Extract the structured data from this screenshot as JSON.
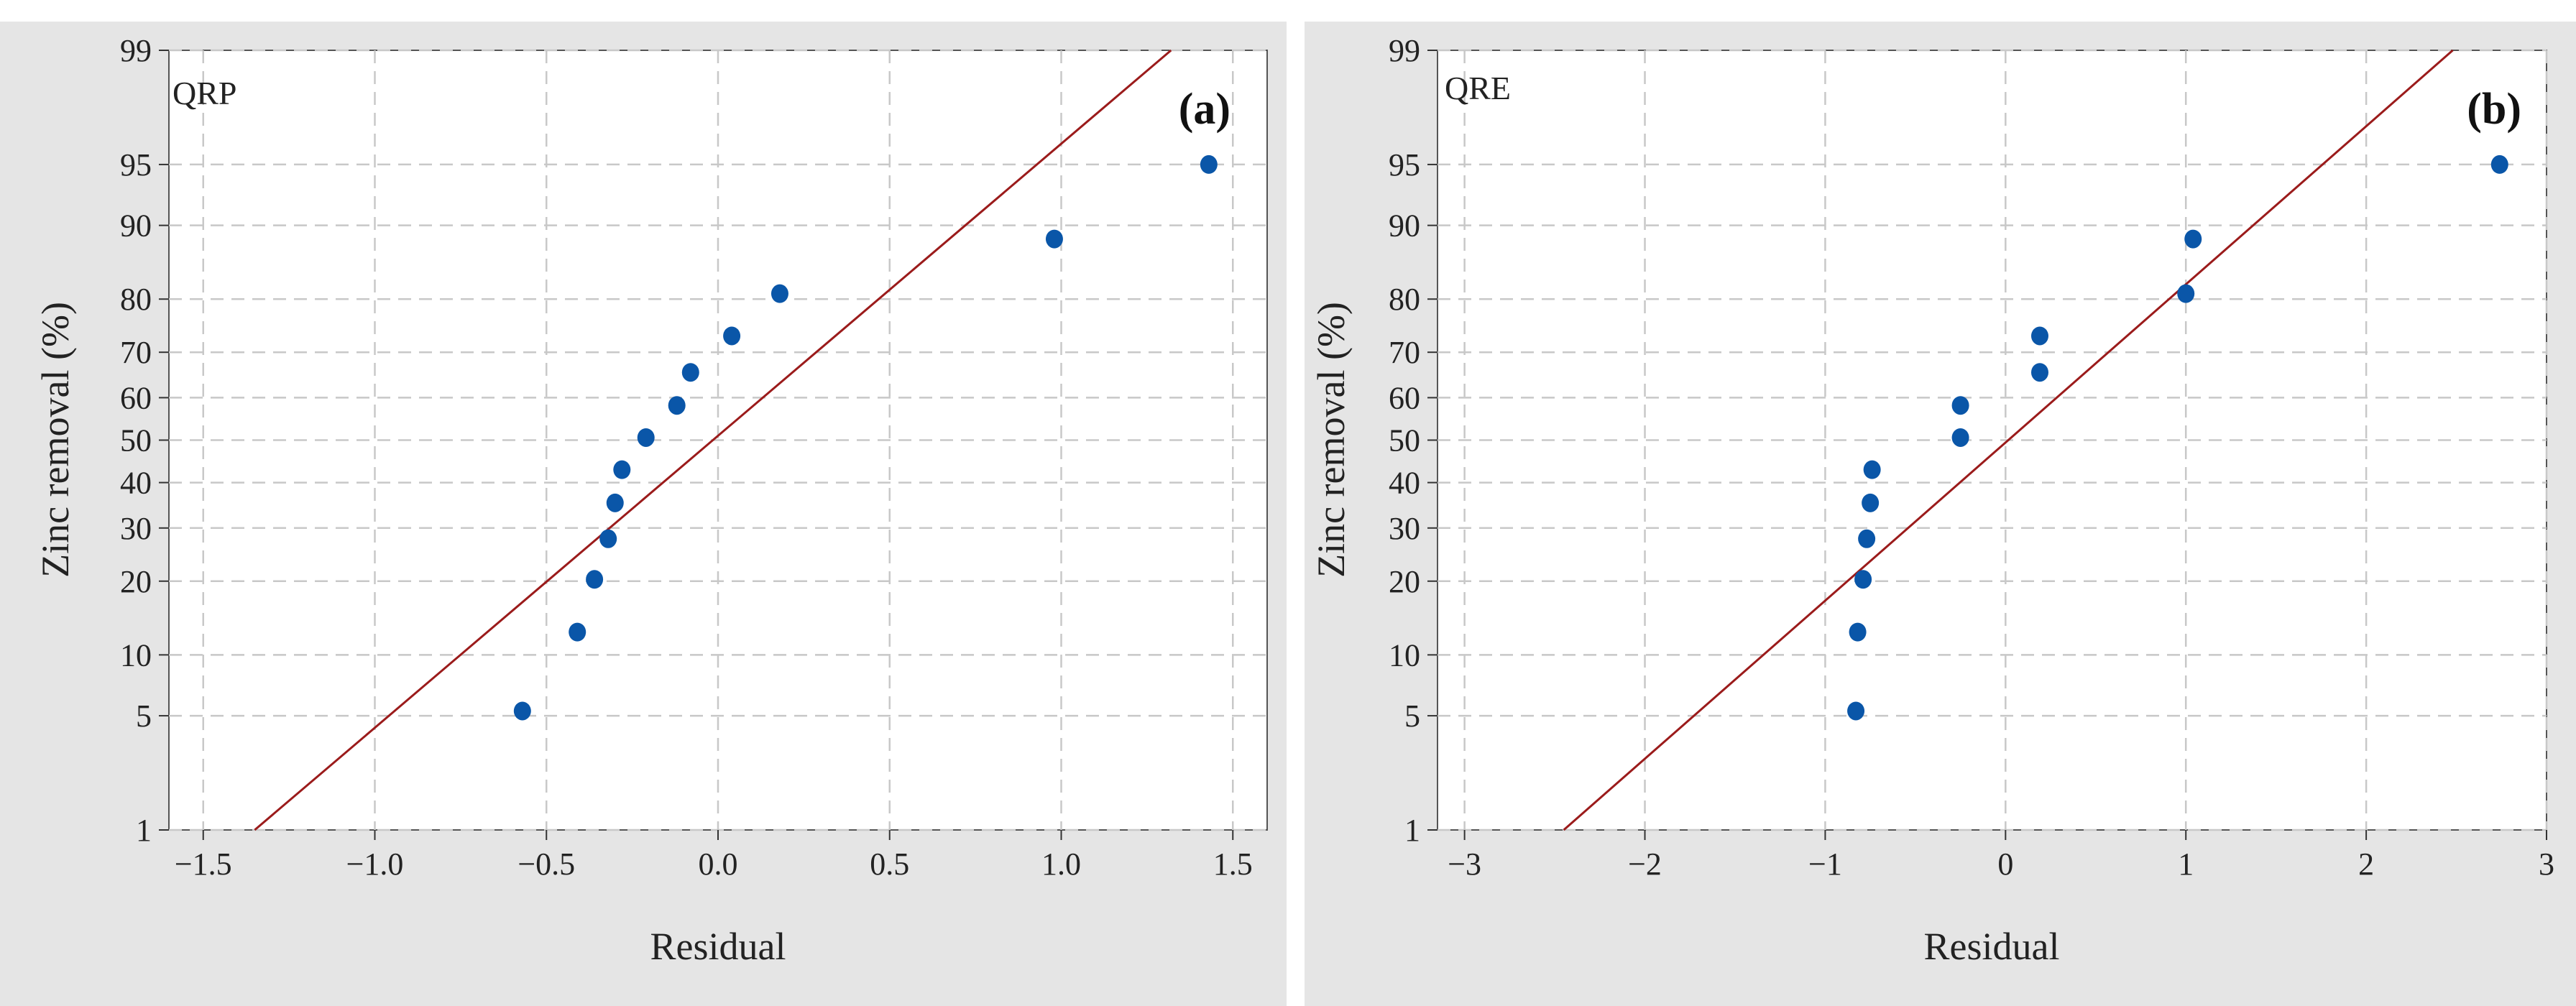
{
  "chart_data": [
    {
      "type": "scatter",
      "panel_label": "(a)",
      "corner_label": "QRP",
      "xlabel": "Residual",
      "ylabel": "Zinc removal (%)",
      "xlim": [
        -1.6,
        1.6
      ],
      "ylim": [
        1,
        99
      ],
      "y_scale": "normal-probability",
      "grid": true,
      "x_ticks": [
        -1.5,
        -1.0,
        -0.5,
        0.0,
        0.5,
        1.0,
        1.5
      ],
      "x_tick_labels": [
        "−1.5",
        "−1.0",
        "−0.5",
        "0.0",
        "0.5",
        "1.0",
        "1.5"
      ],
      "y_ticks": [
        1,
        5,
        10,
        20,
        30,
        40,
        50,
        60,
        70,
        80,
        90,
        95,
        99
      ],
      "y_tick_labels": [
        "1",
        "5",
        "10",
        "20",
        "30",
        "40",
        "50",
        "60",
        "70",
        "80",
        "90",
        "95",
        "99"
      ],
      "fit_line": [
        {
          "x": -1.35,
          "y": 1
        },
        {
          "x": 1.32,
          "y": 99
        }
      ],
      "points": [
        {
          "x": -0.57,
          "y": 5.3
        },
        {
          "x": -0.41,
          "y": 12.6
        },
        {
          "x": -0.36,
          "y": 20.3
        },
        {
          "x": -0.32,
          "y": 27.8
        },
        {
          "x": -0.3,
          "y": 35.4
        },
        {
          "x": -0.28,
          "y": 43.0
        },
        {
          "x": -0.21,
          "y": 50.6
        },
        {
          "x": -0.12,
          "y": 58.2
        },
        {
          "x": -0.08,
          "y": 65.7
        },
        {
          "x": 0.04,
          "y": 73.3
        },
        {
          "x": 0.18,
          "y": 80.9
        },
        {
          "x": 0.98,
          "y": 88.5
        },
        {
          "x": 1.43,
          "y": 95.0
        }
      ]
    },
    {
      "type": "scatter",
      "panel_label": "(b)",
      "corner_label": "QRE",
      "xlabel": "Residual",
      "ylabel": "Zinc removal (%)",
      "xlim": [
        -3.15,
        3.0
      ],
      "ylim": [
        1,
        99
      ],
      "y_scale": "normal-probability",
      "grid": true,
      "x_ticks": [
        -3,
        -2,
        -1,
        0,
        1,
        2,
        3
      ],
      "x_tick_labels": [
        "−3",
        "−2",
        "−1",
        "0",
        "1",
        "2",
        "3"
      ],
      "y_ticks": [
        1,
        5,
        10,
        20,
        30,
        40,
        50,
        60,
        70,
        80,
        90,
        95,
        99
      ],
      "y_tick_labels": [
        "1",
        "5",
        "10",
        "20",
        "30",
        "40",
        "50",
        "60",
        "70",
        "80",
        "90",
        "95",
        "99"
      ],
      "fit_line": [
        {
          "x": -2.45,
          "y": 1
        },
        {
          "x": 2.48,
          "y": 99
        }
      ],
      "points": [
        {
          "x": -0.83,
          "y": 5.3
        },
        {
          "x": -0.82,
          "y": 12.6
        },
        {
          "x": -0.79,
          "y": 20.3
        },
        {
          "x": -0.77,
          "y": 27.8
        },
        {
          "x": -0.75,
          "y": 35.4
        },
        {
          "x": -0.74,
          "y": 43.0
        },
        {
          "x": -0.25,
          "y": 50.6
        },
        {
          "x": -0.25,
          "y": 58.2
        },
        {
          "x": 0.19,
          "y": 65.7
        },
        {
          "x": 0.19,
          "y": 73.3
        },
        {
          "x": 1.0,
          "y": 80.9
        },
        {
          "x": 1.04,
          "y": 88.5
        },
        {
          "x": 2.74,
          "y": 95.0
        }
      ]
    }
  ]
}
